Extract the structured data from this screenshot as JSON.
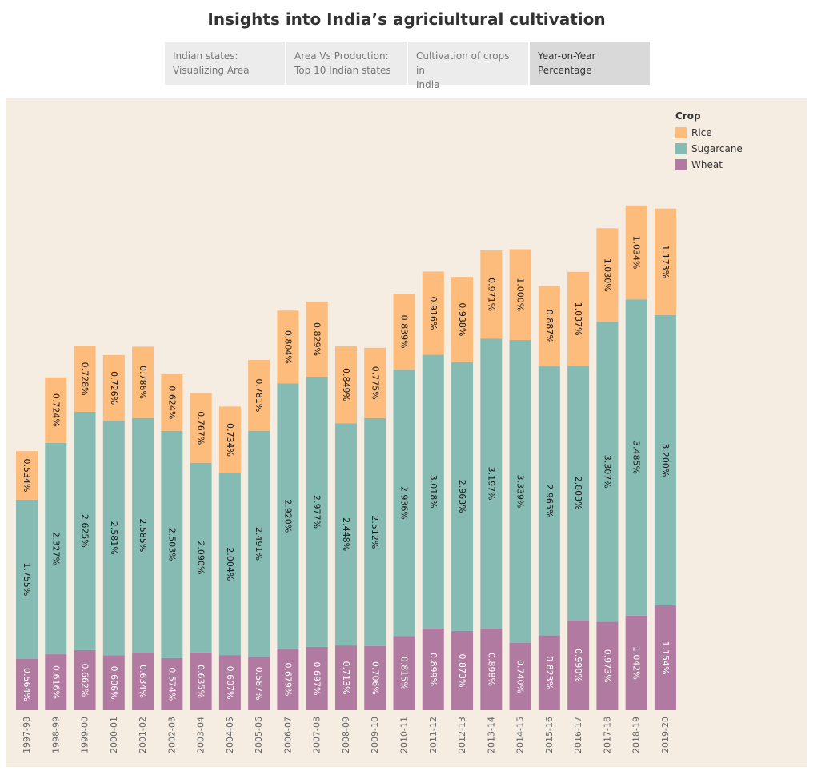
{
  "title": "Insights into India’s agriciultural cultivation",
  "tabs": [
    {
      "label_line1": "Indian states:",
      "label_line2": "Visualizing Area",
      "active": false
    },
    {
      "label_line1": "Area Vs Production:",
      "label_line2": "Top 10 Indian states",
      "active": false
    },
    {
      "label_line1": "Cultivation of crops in",
      "label_line2": "India",
      "active": false
    },
    {
      "label_line1": "Year-on-Year",
      "label_line2": "Percentage",
      "active": true
    }
  ],
  "colors": {
    "Rice": "#fdbb7c",
    "Sugarcane": "#85bbb2",
    "Wheat": "#b07aa1",
    "background": "#f5ece2"
  },
  "chart_data": {
    "type": "bar",
    "stacked": true,
    "orientation": "vertical",
    "categories": [
      "1997-98",
      "1998-99",
      "1999-00",
      "2000-01",
      "2001-02",
      "2002-03",
      "2003-04",
      "2004-05",
      "2005-06",
      "2006-07",
      "2007-08",
      "2008-09",
      "2009-10",
      "2010-11",
      "2011-12",
      "2012-13",
      "2013-14",
      "2014-15",
      "2015-16",
      "2016-17",
      "2017-18",
      "2018-19",
      "2019-20"
    ],
    "series": [
      {
        "name": "Wheat",
        "values": [
          0.564,
          0.616,
          0.662,
          0.606,
          0.634,
          0.574,
          0.635,
          0.607,
          0.587,
          0.679,
          0.697,
          0.713,
          0.706,
          0.815,
          0.899,
          0.873,
          0.898,
          0.74,
          0.823,
          0.99,
          0.973,
          1.042,
          1.154
        ]
      },
      {
        "name": "Sugarcane",
        "values": [
          1.755,
          2.327,
          2.625,
          2.581,
          2.585,
          2.503,
          2.09,
          2.004,
          2.491,
          2.92,
          2.977,
          2.448,
          2.512,
          2.936,
          3.018,
          2.963,
          3.197,
          3.339,
          2.965,
          2.803,
          3.307,
          3.485,
          3.2
        ]
      },
      {
        "name": "Rice",
        "values": [
          0.534,
          0.724,
          0.728,
          0.726,
          0.786,
          0.624,
          0.767,
          0.734,
          0.781,
          0.804,
          0.829,
          0.849,
          0.775,
          0.839,
          0.916,
          0.938,
          0.971,
          1.0,
          0.887,
          1.037,
          1.03,
          1.034,
          1.173
        ]
      }
    ],
    "value_format": "percent",
    "legend": {
      "title": "Crop",
      "position": "top-right",
      "entries": [
        "Rice",
        "Sugarcane",
        "Wheat"
      ]
    },
    "xlabel": "",
    "ylabel": "",
    "grid": false
  }
}
